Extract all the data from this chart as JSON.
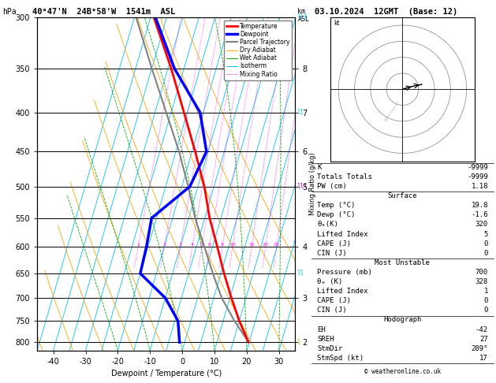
{
  "title_left": "40°47'N  24B°58'W  1541m  ASL",
  "title_right": "03.10.2024  12GMT  (Base: 12)",
  "label_hpa": "hPa",
  "label_km": "km\nASL",
  "xlabel": "Dewpoint / Temperature (°C)",
  "ylabel_right": "Mixing Ratio (g/kg)",
  "pressure_levels": [
    300,
    350,
    400,
    450,
    500,
    550,
    600,
    650,
    700,
    750,
    800
  ],
  "pressure_ticks": [
    300,
    350,
    400,
    450,
    500,
    550,
    600,
    650,
    700,
    750,
    800
  ],
  "km_labels": [
    2,
    3,
    4,
    5,
    6,
    7,
    8
  ],
  "km_pressures": [
    800,
    700,
    600,
    500,
    450,
    400,
    350
  ],
  "temp_xlim": [
    -45,
    35
  ],
  "temp_xticks": [
    -40,
    -30,
    -20,
    -10,
    0,
    10,
    20,
    30
  ],
  "p_min": 300,
  "p_max": 820,
  "skew_factor": 30.0,
  "isotherm_temps": [
    -45,
    -40,
    -35,
    -30,
    -25,
    -20,
    -15,
    -10,
    -5,
    0,
    5,
    10,
    15,
    20,
    25,
    30,
    35
  ],
  "dry_adiabat_thetas": [
    -30,
    -20,
    -10,
    0,
    10,
    20,
    30,
    40,
    50,
    60,
    70
  ],
  "wet_adiabat_T0s": [
    -20,
    -10,
    0,
    10,
    20,
    30
  ],
  "mixing_ratio_vals": [
    1,
    2,
    3,
    4,
    5,
    6,
    8,
    10,
    15,
    20,
    25
  ],
  "temp_profile_pressure": [
    800,
    750,
    700,
    650,
    600,
    550,
    500,
    450,
    400,
    350,
    300
  ],
  "temp_profile_temp": [
    19.8,
    15.0,
    10.5,
    6.0,
    1.5,
    -3.5,
    -8.0,
    -14.0,
    -21.0,
    -29.0,
    -39.0
  ],
  "dewp_profile_pressure": [
    800,
    750,
    700,
    650,
    600,
    550,
    500,
    450,
    400,
    350,
    300
  ],
  "dewp_profile_temp": [
    -1.6,
    -4.0,
    -10.0,
    -20.0,
    -20.5,
    -21.5,
    -12.5,
    -10.5,
    -16.0,
    -28.0,
    -38.5
  ],
  "parcel_pressure": [
    800,
    750,
    700,
    650,
    600,
    550,
    500,
    450,
    400,
    350,
    300
  ],
  "parcel_temp": [
    19.8,
    13.5,
    7.5,
    2.5,
    -2.5,
    -8.0,
    -13.0,
    -19.0,
    -26.5,
    -35.0,
    -44.5
  ],
  "color_temp": "#ff0000",
  "color_dewp": "#0000ff",
  "color_parcel": "#808080",
  "color_isotherm": "#00bfff",
  "color_dry_adiabat": "#ffa500",
  "color_wet_adiabat": "#00aa00",
  "color_mixing_ratio": "#ff00ff",
  "legend_items": [
    "Temperature",
    "Dewpoint",
    "Parcel Trajectory",
    "Dry Adiabat",
    "Wet Adiabat",
    "Isotherm",
    "Mixing Ratio"
  ],
  "legend_colors": [
    "#ff0000",
    "#0000ff",
    "#808080",
    "#ffa500",
    "#00aa00",
    "#00bfff",
    "#ff00ff"
  ],
  "legend_styles": [
    "-",
    "-",
    "-",
    "-",
    "-",
    "-",
    ":"
  ],
  "legend_widths": [
    2.0,
    2.5,
    1.5,
    0.7,
    0.7,
    0.7,
    0.7
  ],
  "table_K": "K",
  "table_K_val": "-9999",
  "table_TT": "Totals Totals",
  "table_TT_val": "-9999",
  "table_PW": "PW (cm)",
  "table_PW_val": "1.18",
  "surf_header": "Surface",
  "surf_rows": [
    [
      "Temp (°C)",
      "19.8"
    ],
    [
      "Dewp (°C)",
      "-1.6"
    ],
    [
      "θₑ(K)",
      "320"
    ],
    [
      "Lifted Index",
      "5"
    ],
    [
      "CAPE (J)",
      "0"
    ],
    [
      "CIN (J)",
      "0"
    ]
  ],
  "mu_header": "Most Unstable",
  "mu_rows": [
    [
      "Pressure (mb)",
      "700"
    ],
    [
      "θₑ (K)",
      "328"
    ],
    [
      "Lifted Index",
      "1"
    ],
    [
      "CAPE (J)",
      "0"
    ],
    [
      "CIN (J)",
      "0"
    ]
  ],
  "hg_header": "Hodograph",
  "hg_rows": [
    [
      "EH",
      "-42"
    ],
    [
      "SREH",
      "27"
    ],
    [
      "StmDir",
      "289°"
    ],
    [
      "StmSpd (kt)",
      "17"
    ]
  ],
  "copyright": "© weatheronline.co.uk",
  "right_markers": [
    {
      "pressure": 300,
      "color": "#00bfff",
      "symbol": "lll"
    },
    {
      "pressure": 400,
      "color": "#00bfff",
      "symbol": "ll"
    },
    {
      "pressure": 500,
      "color": "#aa00aa",
      "symbol": "lll"
    },
    {
      "pressure": 650,
      "color": "#00bfff",
      "symbol": "ll"
    },
    {
      "pressure": 800,
      "color": "#ccaa00",
      "symbol": "l"
    }
  ]
}
